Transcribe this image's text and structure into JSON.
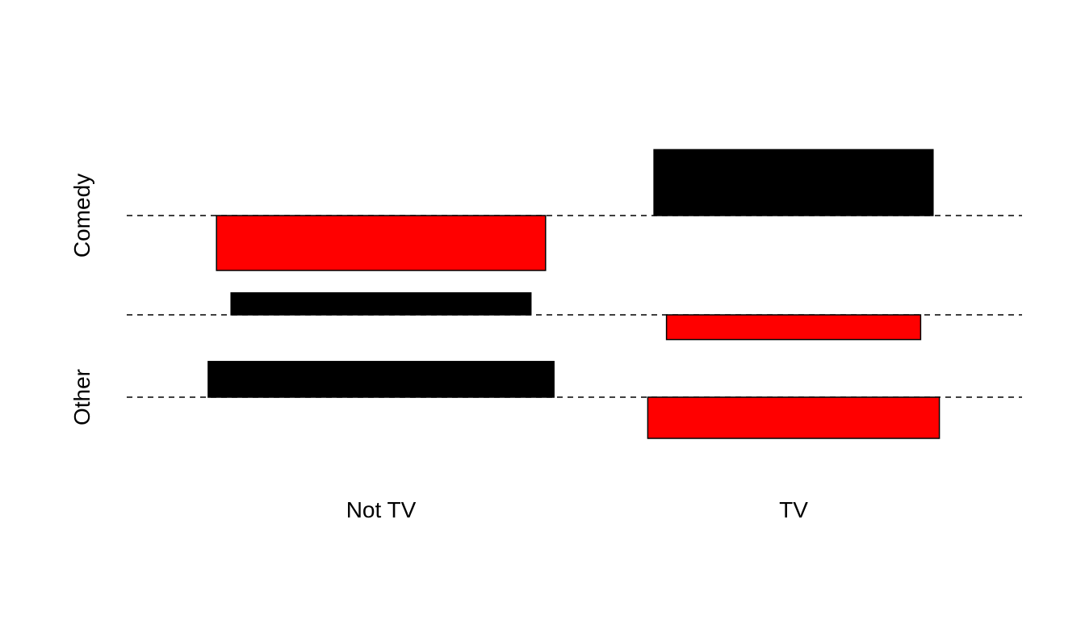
{
  "chart_data": {
    "type": "bar",
    "variant": "mosaic-shading",
    "title": "",
    "x_categories": [
      "Not TV",
      "TV"
    ],
    "y_categories": [
      "Comedy",
      "Other"
    ],
    "grid": false,
    "legend": "none",
    "colors": {
      "positive": "#000000",
      "negative": "#ff0000"
    },
    "cells": [
      {
        "x": "Not TV",
        "y": "Comedy",
        "residual": -2.0,
        "width": 0.79,
        "sign": "negative"
      },
      {
        "x": "Not TV",
        "y": "Other",
        "residual": 0.8,
        "width": 0.72,
        "sign": "positive"
      },
      {
        "x": "Not TV",
        "y": "Other",
        "residual": 1.3,
        "width": 0.83,
        "sign": "positive",
        "note": "lower baseline"
      },
      {
        "x": "TV",
        "y": "Comedy",
        "residual": 2.4,
        "width": 0.67,
        "sign": "positive"
      },
      {
        "x": "TV",
        "y": "Other",
        "residual": -0.9,
        "width": 0.61,
        "sign": "negative"
      },
      {
        "x": "TV",
        "y": "Other",
        "residual": -1.5,
        "width": 0.7,
        "sign": "negative",
        "note": "lower baseline"
      }
    ]
  }
}
